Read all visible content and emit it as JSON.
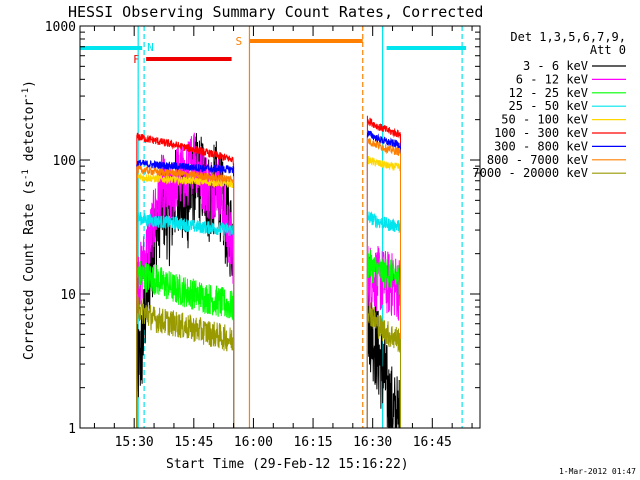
{
  "chart_data": {
    "type": "line",
    "title": "HESSI Observing Summary Count Rates, Corrected",
    "xlabel": "Start Time (29-Feb-12 15:16:22)",
    "ylabel_main": "Corrected Count Rate (s",
    "ylabel_sup1": "-1",
    "ylabel_mid": " detector",
    "ylabel_sup2": "-1",
    "ylabel_end": ")",
    "yscale": "log",
    "ylim": [
      1,
      1000
    ],
    "xlim": [
      "15:16:22",
      "16:57:00"
    ],
    "x_ticks": [
      "15:30",
      "15:45",
      "16:00",
      "16:15",
      "16:30",
      "16:45"
    ],
    "y_ticks": [
      "1",
      "10",
      "100",
      "1000"
    ],
    "legend_header": [
      "Det 1,3,5,6,7,9,",
      "Att 0"
    ],
    "legend_position": "right",
    "footer_date": "1-Mar-2012 01:47",
    "flags": [
      {
        "label": "N",
        "color": "#00e5ee",
        "intervals": [
          [
            "15:16:22",
            "15:32:00"
          ],
          [
            "16:33:30",
            "16:53:30"
          ]
        ]
      },
      {
        "label": "F",
        "color": "#ee0000",
        "intervals": [
          [
            "15:33:00",
            "15:54:30"
          ]
        ]
      },
      {
        "label": "S",
        "color": "#ff8000",
        "intervals": [
          [
            "15:59:00",
            "16:27:30"
          ]
        ]
      }
    ],
    "time_markers": [
      {
        "time": "15:31:00",
        "color": "#00e5ee",
        "style": "solid"
      },
      {
        "time": "15:32:30",
        "color": "#00e5ee",
        "style": "dashed"
      },
      {
        "time": "15:59:00",
        "color": "#ff8000",
        "style": "solid"
      },
      {
        "time": "16:27:30",
        "color": "#ff8000",
        "style": "dashed"
      },
      {
        "time": "16:32:30",
        "color": "#00e5ee",
        "style": "solid"
      },
      {
        "time": "16:52:30",
        "color": "#00e5ee",
        "style": "dashed"
      }
    ],
    "series": [
      {
        "name": "3 - 6 keV",
        "color": "#000000",
        "noise": 0.35,
        "segments": [
          {
            "x": [
              "15:30:40",
              "15:32:00",
              "15:33:00",
              "15:35:00",
              "15:37:00",
              "15:39:00",
              "15:41:00",
              "15:43:00",
              "15:45:00",
              "15:47:00",
              "15:49:00",
              "15:51:00",
              "15:53:00",
              "15:55:00"
            ],
            "y": [
              2.5,
              4,
              9,
              25,
              50,
              35,
              68,
              40,
              72,
              72,
              50,
              68,
              35,
              25
            ]
          },
          {
            "x": [
              "16:28:40",
              "16:30:00",
              "16:31:00",
              "16:32:00",
              "16:33:00",
              "16:34:00",
              "16:35:30",
              "16:37:00"
            ],
            "y": [
              7,
              5,
              4,
              3,
              2.5,
              1.6,
              1.2,
              1.1
            ]
          }
        ]
      },
      {
        "name": "6 - 12 keV",
        "color": "#ff00ff",
        "noise": 0.25,
        "segments": [
          {
            "x": [
              "15:30:40",
              "15:32:00",
              "15:33:00",
              "15:35:00",
              "15:37:00",
              "15:39:00",
              "15:41:00",
              "15:43:00",
              "15:45:00",
              "15:47:00",
              "15:49:00",
              "15:51:00",
              "15:53:00",
              "15:55:00"
            ],
            "y": [
              12,
              15,
              20,
              35,
              65,
              50,
              80,
              70,
              110,
              75,
              60,
              70,
              35,
              20
            ]
          },
          {
            "x": [
              "16:28:40",
              "16:31:00",
              "16:34:00",
              "16:37:00"
            ],
            "y": [
              14,
              13,
              12,
              11
            ]
          }
        ]
      },
      {
        "name": "12 - 25 keV",
        "color": "#00ff00",
        "noise": 0.12,
        "segments": [
          {
            "x": [
              "15:30:40",
              "15:35:00",
              "15:40:00",
              "15:45:00",
              "15:50:00",
              "15:55:00"
            ],
            "y": [
              14,
              13,
              11,
              10,
              9,
              8
            ]
          },
          {
            "x": [
              "16:28:40",
              "16:31:00",
              "16:34:00",
              "16:37:00"
            ],
            "y": [
              17,
              15,
              14,
              13
            ]
          }
        ]
      },
      {
        "name": "25 - 50 keV",
        "color": "#00e5ee",
        "noise": 0.05,
        "segments": [
          {
            "x": [
              "15:30:40",
              "15:35:00",
              "15:40:00",
              "15:45:00",
              "15:50:00",
              "15:55:00"
            ],
            "y": [
              37,
              35,
              34,
              32,
              31,
              30
            ]
          },
          {
            "x": [
              "16:28:40",
              "16:31:00",
              "16:34:00",
              "16:37:00"
            ],
            "y": [
              38,
              35,
              33,
              32
            ]
          }
        ]
      },
      {
        "name": "50 - 100 keV",
        "color": "#ffd700",
        "noise": 0.03,
        "segments": [
          {
            "x": [
              "15:30:40",
              "15:35:00",
              "15:40:00",
              "15:45:00",
              "15:50:00",
              "15:55:00"
            ],
            "y": [
              75,
              73,
              71,
              70,
              68,
              66
            ]
          },
          {
            "x": [
              "16:28:40",
              "16:31:00",
              "16:34:00",
              "16:37:00"
            ],
            "y": [
              100,
              95,
              90,
              88
            ]
          }
        ]
      },
      {
        "name": "100 - 300 keV",
        "color": "#ff0000",
        "noise": 0.03,
        "segments": [
          {
            "x": [
              "15:30:40",
              "15:35:00",
              "15:40:00",
              "15:45:00",
              "15:50:00",
              "15:55:00"
            ],
            "y": [
              150,
              140,
              130,
              120,
              110,
              100
            ]
          },
          {
            "x": [
              "16:28:40",
              "16:31:00",
              "16:34:00",
              "16:37:00"
            ],
            "y": [
              200,
              180,
              165,
              155
            ]
          }
        ]
      },
      {
        "name": "300 - 800 keV",
        "color": "#0000ff",
        "noise": 0.03,
        "segments": [
          {
            "x": [
              "15:30:40",
              "15:35:00",
              "15:40:00",
              "15:45:00",
              "15:50:00",
              "15:55:00"
            ],
            "y": [
              95,
              92,
              90,
              88,
              86,
              85
            ]
          },
          {
            "x": [
              "16:28:40",
              "16:31:00",
              "16:34:00",
              "16:37:00"
            ],
            "y": [
              160,
              145,
              135,
              130
            ]
          }
        ]
      },
      {
        "name": "800 - 7000 keV",
        "color": "#ff8000",
        "noise": 0.03,
        "segments": [
          {
            "x": [
              "15:30:40",
              "15:35:00",
              "15:40:00",
              "15:45:00",
              "15:50:00",
              "15:55:00"
            ],
            "y": [
              85,
              82,
              80,
              77,
              74,
              72
            ]
          },
          {
            "x": [
              "16:28:40",
              "16:31:00",
              "16:34:00",
              "16:37:00"
            ],
            "y": [
              140,
              130,
              120,
              115
            ]
          }
        ]
      },
      {
        "name": "7000 - 20000 keV",
        "color": "#999900",
        "noise": 0.1,
        "segments": [
          {
            "x": [
              "15:30:40",
              "15:35:00",
              "15:40:00",
              "15:45:00",
              "15:50:00",
              "15:55:00"
            ],
            "y": [
              8,
              6.5,
              6,
              5.5,
              5,
              4.5
            ]
          },
          {
            "x": [
              "16:28:40",
              "16:31:00",
              "16:34:00",
              "16:37:00"
            ],
            "y": [
              8,
              6,
              5,
              4.5
            ]
          }
        ]
      }
    ]
  }
}
